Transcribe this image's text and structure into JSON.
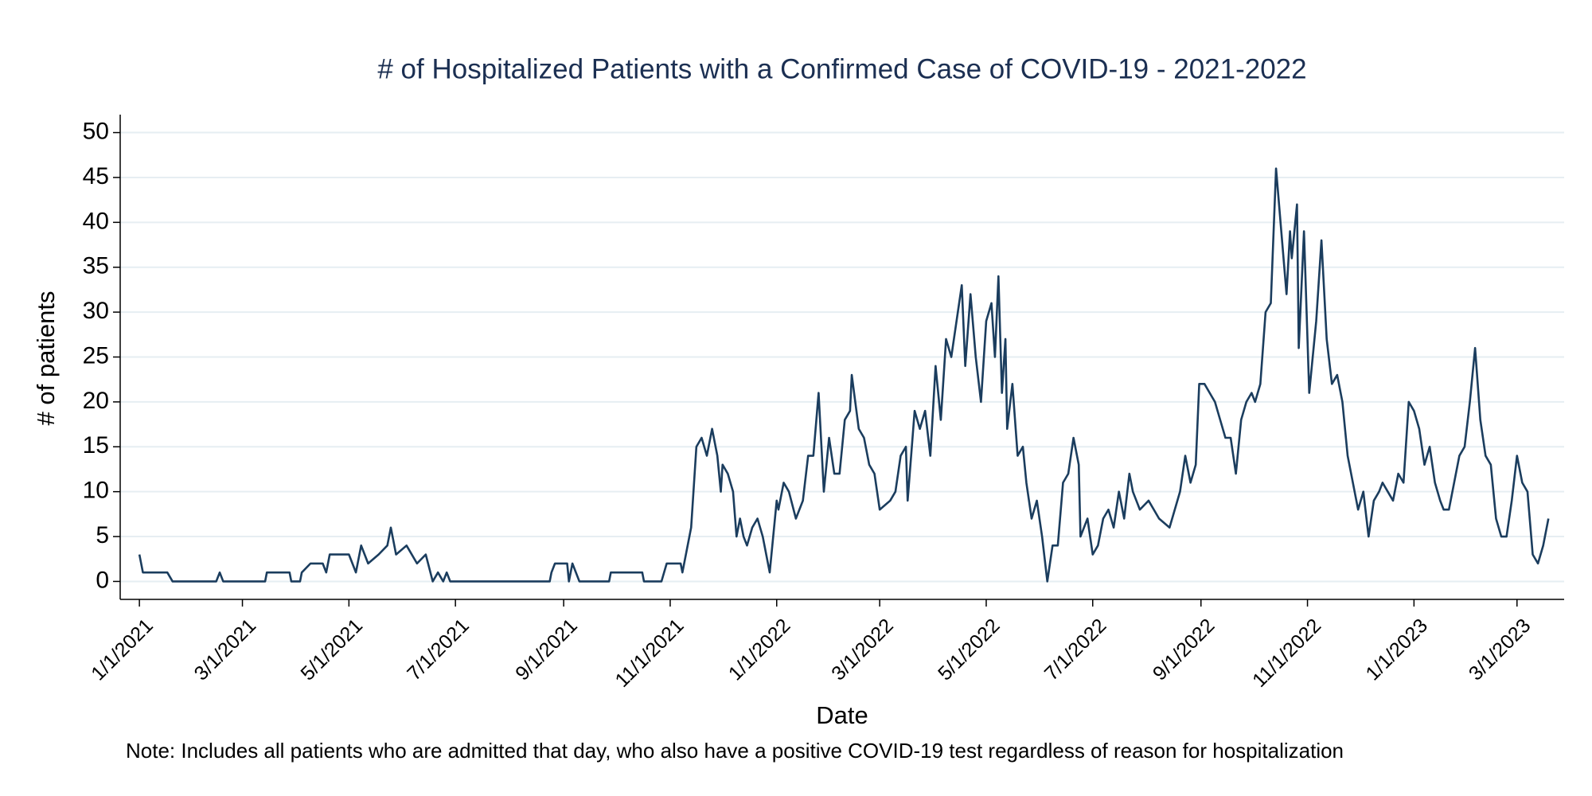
{
  "chart_data": {
    "type": "line",
    "title": "# of Hospitalized Patients with a Confirmed Case of COVID-19 - 2021-2022",
    "x_label": "Date",
    "y_label": "# of patients",
    "note": "Note: Includes all patients who are admitted that day, who also have a positive COVID-19 test regardless of reason for hospitalization",
    "color": "#1b3d5e",
    "grid": true,
    "xlim": [
      "12/21/2020",
      "3/28/2023"
    ],
    "xticks": [
      "1/1/2021",
      "3/1/2021",
      "5/1/2021",
      "7/1/2021",
      "9/1/2021",
      "11/1/2021",
      "1/1/2022",
      "3/1/2022",
      "5/1/2022",
      "7/1/2022",
      "9/1/2022",
      "11/1/2022",
      "1/1/2023",
      "3/1/2023"
    ],
    "ylim": [
      -2,
      52
    ],
    "yticks": [
      0,
      5,
      10,
      15,
      20,
      25,
      30,
      35,
      40,
      45,
      50
    ],
    "x": [
      "1/1/2021",
      "1/3/2021",
      "1/17/2021",
      "1/20/2021",
      "2/14/2021",
      "2/16/2021",
      "2/18/2021",
      "3/14/2021",
      "3/15/2021",
      "3/28/2021",
      "3/29/2021",
      "4/3/2021",
      "4/4/2021",
      "4/9/2021",
      "4/16/2021",
      "4/18/2021",
      "4/20/2021",
      "5/1/2021",
      "5/3/2021",
      "5/5/2021",
      "5/8/2021",
      "5/12/2021",
      "5/18/2021",
      "5/23/2021",
      "5/25/2021",
      "5/28/2021",
      "6/3/2021",
      "6/9/2021",
      "6/14/2021",
      "6/18/2021",
      "6/21/2021",
      "6/24/2021",
      "6/26/2021",
      "6/28/2021",
      "8/24/2021",
      "8/25/2021",
      "8/27/2021",
      "9/3/2021",
      "9/4/2021",
      "9/6/2021",
      "9/10/2021",
      "9/27/2021",
      "9/28/2021",
      "10/16/2021",
      "10/17/2021",
      "10/27/2021",
      "10/30/2021",
      "11/7/2021",
      "11/8/2021",
      "11/13/2021",
      "11/16/2021",
      "11/19/2021",
      "11/22/2021",
      "11/25/2021",
      "11/28/2021",
      "11/30/2021",
      "12/1/2021",
      "12/4/2021",
      "12/7/2021",
      "12/9/2021",
      "12/11/2021",
      "12/13/2021",
      "12/15/2021",
      "12/18/2021",
      "12/21/2021",
      "12/24/2021",
      "12/28/2021",
      "1/1/2022",
      "1/2/2022",
      "1/5/2022",
      "1/8/2022",
      "1/12/2022",
      "1/16/2022",
      "1/19/2022",
      "1/22/2022",
      "1/25/2022",
      "1/28/2022",
      "1/31/2022",
      "2/3/2022",
      "2/6/2022",
      "2/9/2022",
      "2/12/2022",
      "2/13/2022",
      "2/17/2022",
      "2/20/2022",
      "2/23/2022",
      "2/26/2022",
      "3/1/2022",
      "3/7/2022",
      "3/10/2022",
      "3/13/2022",
      "3/16/2022",
      "3/17/2022",
      "3/21/2022",
      "3/24/2022",
      "3/27/2022",
      "3/30/2022",
      "4/2/2022",
      "4/5/2022",
      "4/8/2022",
      "4/11/2022",
      "4/17/2022",
      "4/19/2022",
      "4/22/2022",
      "4/25/2022",
      "4/28/2022",
      "5/1/2022",
      "5/4/2022",
      "5/6/2022",
      "5/8/2022",
      "5/10/2022",
      "5/12/2022",
      "5/13/2022",
      "5/16/2022",
      "5/19/2022",
      "5/22/2022",
      "5/24/2022",
      "5/27/2022",
      "5/30/2022",
      "6/2/2022",
      "6/5/2022",
      "6/8/2022",
      "6/11/2022",
      "6/14/2022",
      "6/17/2022",
      "6/20/2022",
      "6/23/2022",
      "6/24/2022",
      "6/28/2022",
      "7/1/2022",
      "7/4/2022",
      "7/7/2022",
      "7/10/2022",
      "7/13/2022",
      "7/16/2022",
      "7/19/2022",
      "7/22/2022",
      "7/24/2022",
      "7/28/2022",
      "8/2/2022",
      "8/8/2022",
      "8/14/2022",
      "8/20/2022",
      "8/23/2022",
      "8/26/2022",
      "8/29/2022",
      "8/31/2022",
      "9/3/2022",
      "9/6/2022",
      "9/9/2022",
      "9/12/2022",
      "9/15/2022",
      "9/18/2022",
      "9/21/2022",
      "9/24/2022",
      "9/27/2022",
      "9/30/2022",
      "10/2/2022",
      "10/5/2022",
      "10/8/2022",
      "10/11/2022",
      "10/14/2022",
      "10/17/2022",
      "10/20/2022",
      "10/22/2022",
      "10/23/2022",
      "10/26/2022",
      "10/27/2022",
      "10/30/2022",
      "11/2/2022",
      "11/3/2022",
      "11/6/2022",
      "11/9/2022",
      "11/12/2022",
      "11/15/2022",
      "11/18/2022",
      "11/21/2022",
      "11/24/2022",
      "11/27/2022",
      "11/30/2022",
      "12/3/2022",
      "12/6/2022",
      "12/9/2022",
      "12/12/2022",
      "12/14/2022",
      "12/17/2022",
      "12/20/2022",
      "12/23/2022",
      "12/26/2022",
      "12/29/2022",
      "1/1/2023",
      "1/4/2023",
      "1/7/2023",
      "1/10/2023",
      "1/13/2023",
      "1/16/2023",
      "1/18/2023",
      "1/21/2023",
      "1/24/2023",
      "1/27/2023",
      "1/30/2023",
      "2/2/2023",
      "2/5/2023",
      "2/8/2023",
      "2/11/2023",
      "2/14/2023",
      "2/17/2023",
      "2/20/2023",
      "2/23/2023",
      "2/26/2023",
      "3/1/2023",
      "3/4/2023",
      "3/7/2023",
      "3/10/2023",
      "3/13/2023",
      "3/16/2023",
      "3/19/2023"
    ],
    "values": [
      3,
      1,
      1,
      0,
      0,
      1,
      0,
      0,
      1,
      1,
      0,
      0,
      1,
      2,
      2,
      1,
      3,
      3,
      2,
      1,
      4,
      2,
      3,
      4,
      6,
      3,
      4,
      2,
      3,
      0,
      1,
      0,
      1,
      0,
      0,
      1,
      2,
      2,
      0,
      2,
      0,
      0,
      1,
      1,
      0,
      0,
      2,
      2,
      1,
      6,
      15,
      16,
      14,
      17,
      14,
      10,
      13,
      12,
      10,
      5,
      7,
      5,
      4,
      6,
      7,
      5,
      1,
      9,
      8,
      11,
      10,
      7,
      9,
      14,
      14,
      21,
      10,
      16,
      12,
      12,
      18,
      19,
      23,
      17,
      16,
      13,
      12,
      8,
      9,
      10,
      14,
      15,
      9,
      19,
      17,
      19,
      14,
      24,
      18,
      27,
      25,
      33,
      24,
      32,
      25,
      20,
      29,
      31,
      25,
      34,
      21,
      27,
      17,
      22,
      14,
      15,
      11,
      7,
      9,
      5,
      0,
      4,
      4,
      11,
      12,
      16,
      13,
      5,
      7,
      3,
      4,
      7,
      8,
      6,
      10,
      7,
      12,
      10,
      8,
      9,
      7,
      6,
      10,
      14,
      11,
      13,
      22,
      22,
      21,
      20,
      18,
      16,
      16,
      12,
      18,
      20,
      21,
      20,
      22,
      30,
      31,
      46,
      39,
      32,
      39,
      36,
      42,
      26,
      39,
      21,
      23,
      29,
      38,
      27,
      22,
      23,
      20,
      14,
      11,
      8,
      10,
      5,
      9,
      10,
      11,
      10,
      9,
      12,
      11,
      20,
      19,
      17,
      13,
      15,
      11,
      9,
      8,
      8,
      11,
      14,
      15,
      20,
      26,
      18,
      14,
      13,
      7,
      5,
      5,
      9,
      14,
      11,
      10,
      3,
      2,
      4,
      7
    ]
  }
}
